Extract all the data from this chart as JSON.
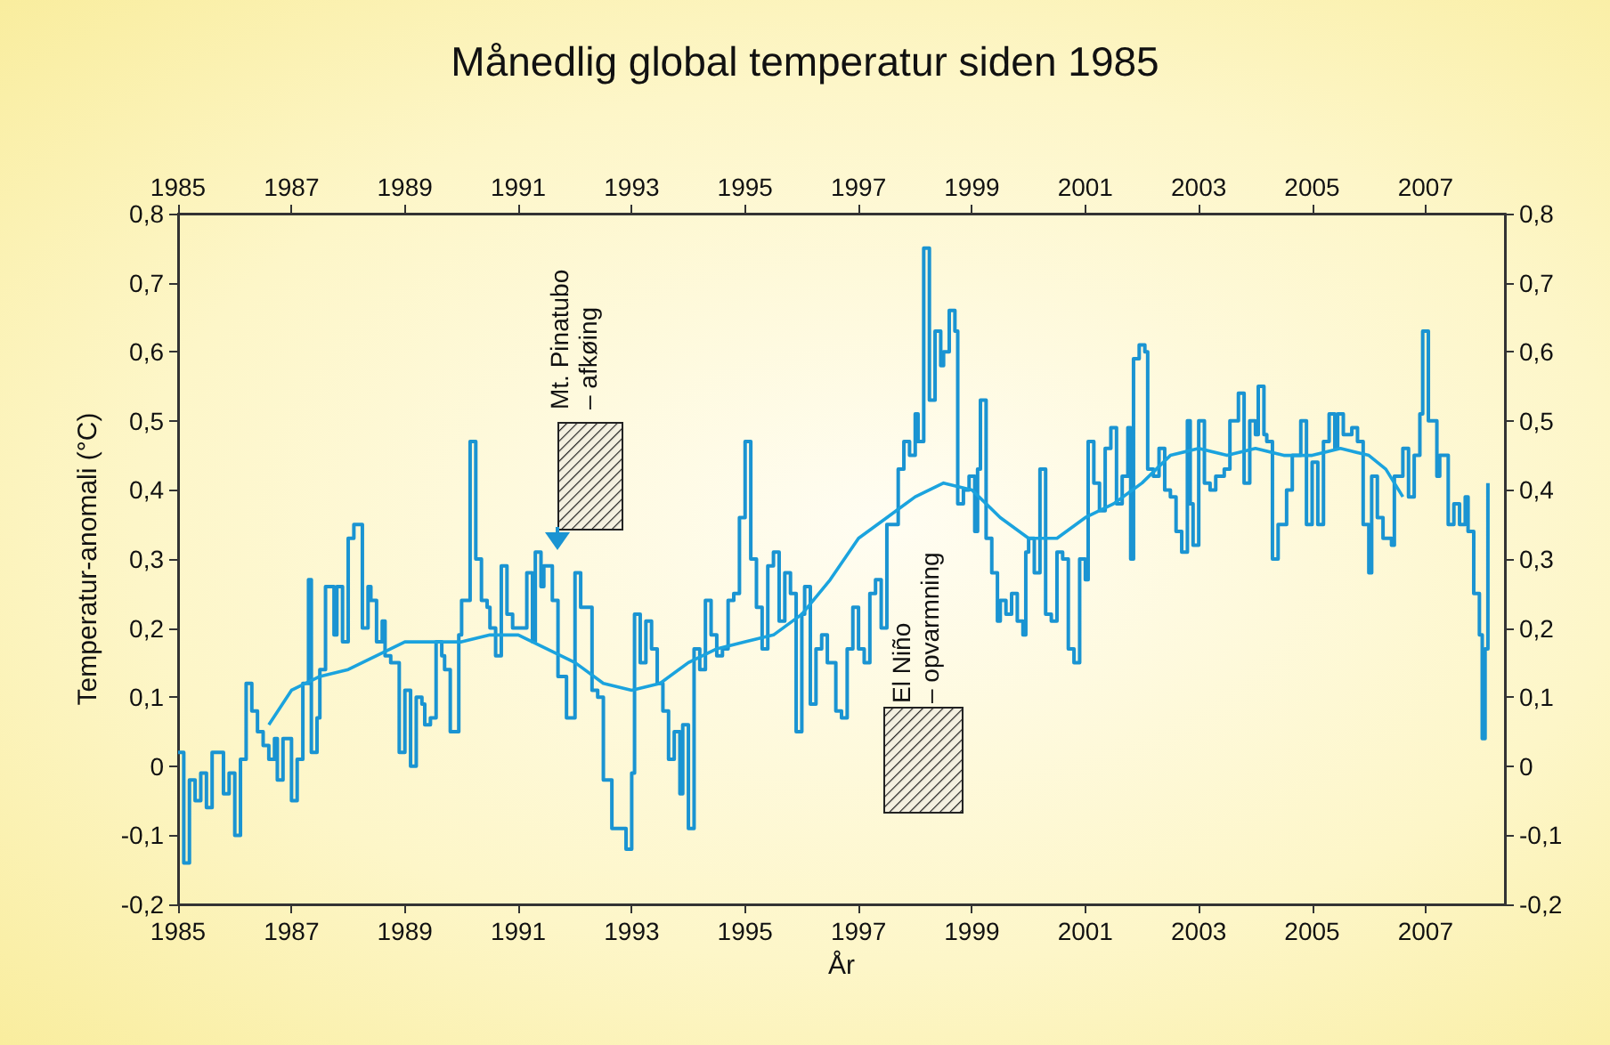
{
  "chart_data": {
    "type": "step",
    "title": "Månedlig global temperatur siden 1985",
    "xlabel": "År",
    "ylabel": "Temperatur-anomali (°C)",
    "xlim": [
      1985,
      2008.4
    ],
    "xticks": [
      1985,
      1987,
      1989,
      1991,
      1993,
      1995,
      1997,
      1999,
      2001,
      2003,
      2005,
      2007
    ],
    "x2lim": [
      1985,
      2008.4
    ],
    "x2ticks": [
      1985,
      1987,
      1989,
      1991,
      1993,
      1995,
      1997,
      1999,
      2001,
      2003,
      2005,
      2007
    ],
    "ylim": [
      -0.2,
      0.8
    ],
    "yticks": [
      {
        "value": -0.2,
        "label": "-0,2"
      },
      {
        "value": -0.1,
        "label": "-0,1"
      },
      {
        "value": 0,
        "label": "0"
      },
      {
        "value": 0.1,
        "label": "0,1"
      },
      {
        "value": 0.2,
        "label": "0,2"
      },
      {
        "value": 0.3,
        "label": "0,3"
      },
      {
        "value": 0.4,
        "label": "0,4"
      },
      {
        "value": 0.5,
        "label": "0,5"
      },
      {
        "value": 0.6,
        "label": "0,6"
      },
      {
        "value": 0.7,
        "label": "0,7"
      },
      {
        "value": 0.8,
        "label": "0,8"
      }
    ],
    "y2lim": [
      -0.2,
      0.8
    ],
    "y2ticks": [
      {
        "value": -0.2,
        "label": "-0,2"
      },
      {
        "value": -0.1,
        "label": "-0,1"
      },
      {
        "value": 0,
        "label": "0"
      },
      {
        "value": 0.1,
        "label": "0,1"
      },
      {
        "value": 0.2,
        "label": "0,2"
      },
      {
        "value": 0.3,
        "label": "0,3"
      },
      {
        "value": 0.4,
        "label": "0,4"
      },
      {
        "value": 0.5,
        "label": "0,5"
      },
      {
        "value": 0.6,
        "label": "0,6"
      },
      {
        "value": 0.7,
        "label": "0,7"
      },
      {
        "value": 0.8,
        "label": "0,8"
      }
    ],
    "grid": false,
    "marker": "none",
    "line_style": "solid",
    "annotations": [
      "Mt. Pinatubo\n– afkøing",
      "El Niño\n– opvarmning"
    ],
    "series": [
      {
        "type": "step",
        "color": "#1a94d2",
        "x": [
          1985.0,
          1985.1,
          1985.2,
          1985.3,
          1985.4,
          1985.5,
          1985.6,
          1985.8,
          1985.9,
          1986.0,
          1986.1,
          1986.2,
          1986.3,
          1986.4,
          1986.5,
          1986.6,
          1986.7,
          1986.75,
          1986.85,
          1987.0,
          1987.1,
          1987.2,
          1987.3,
          1987.35,
          1987.45,
          1987.5,
          1987.6,
          1987.75,
          1987.8,
          1987.9,
          1988.0,
          1988.1,
          1988.25,
          1988.35,
          1988.4,
          1988.5,
          1988.6,
          1988.65,
          1988.75,
          1988.9,
          1989.0,
          1989.1,
          1989.2,
          1989.3,
          1989.35,
          1989.45,
          1989.55,
          1989.65,
          1989.7,
          1989.8,
          1989.95,
          1990.0,
          1990.15,
          1990.25,
          1990.35,
          1990.45,
          1990.5,
          1990.6,
          1990.7,
          1990.8,
          1990.9,
          1991.05,
          1991.15,
          1991.25,
          1991.3,
          1991.4,
          1991.45,
          1991.6,
          1991.7,
          1991.85,
          1992.0,
          1992.1,
          1992.3,
          1992.4,
          1992.5,
          1992.65,
          1992.75,
          1992.9,
          1993.0,
          1993.05,
          1993.15,
          1993.25,
          1993.35,
          1993.45,
          1993.55,
          1993.65,
          1993.75,
          1993.85,
          1993.9,
          1994.0,
          1994.1,
          1994.2,
          1994.3,
          1994.4,
          1994.5,
          1994.6,
          1994.7,
          1994.8,
          1994.9,
          1995.0,
          1995.1,
          1995.2,
          1995.3,
          1995.4,
          1995.5,
          1995.6,
          1995.7,
          1995.8,
          1995.9,
          1996.0,
          1996.05,
          1996.15,
          1996.25,
          1996.35,
          1996.45,
          1996.6,
          1996.7,
          1996.8,
          1996.9,
          1997.0,
          1997.1,
          1997.2,
          1997.3,
          1997.4,
          1997.5,
          1997.6,
          1997.7,
          1997.8,
          1997.9,
          1998.0,
          1998.05,
          1998.15,
          1998.25,
          1998.35,
          1998.45,
          1998.5,
          1998.6,
          1998.7,
          1998.75,
          1998.85,
          1998.95,
          1999.05,
          1999.1,
          1999.15,
          1999.25,
          1999.35,
          1999.45,
          1999.5,
          1999.6,
          1999.7,
          1999.8,
          1999.9,
          1999.95,
          2000.0,
          2000.1,
          2000.2,
          2000.3,
          2000.4,
          2000.5,
          2000.6,
          2000.7,
          2000.8,
          2000.9,
          2001.0,
          2001.05,
          2001.15,
          2001.25,
          2001.35,
          2001.45,
          2001.55,
          2001.65,
          2001.75,
          2001.8,
          2001.85,
          2001.95,
          2002.05,
          2002.1,
          2002.2,
          2002.3,
          2002.4,
          2002.5,
          2002.6,
          2002.7,
          2002.8,
          2002.85,
          2002.9,
          2003.0,
          2003.1,
          2003.2,
          2003.3,
          2003.45,
          2003.55,
          2003.7,
          2003.8,
          2003.9,
          2004.0,
          2004.05,
          2004.15,
          2004.2,
          2004.3,
          2004.4,
          2004.55,
          2004.65,
          2004.8,
          2004.9,
          2005.0,
          2005.1,
          2005.2,
          2005.3,
          2005.4,
          2005.45,
          2005.55,
          2005.7,
          2005.8,
          2005.9,
          2006.0,
          2006.05,
          2006.15,
          2006.25,
          2006.4,
          2006.45,
          2006.6,
          2006.7,
          2006.8,
          2006.9,
          2006.95,
          2007.05,
          2007.2,
          2007.25,
          2007.4,
          2007.5,
          2007.6,
          2007.7,
          2007.75,
          2007.85,
          2007.95,
          2008.0,
          2008.05,
          2008.1
        ],
        "values": [
          0.02,
          -0.14,
          -0.02,
          -0.05,
          -0.01,
          -0.06,
          0.02,
          -0.04,
          -0.01,
          -0.1,
          0.01,
          0.12,
          0.08,
          0.05,
          0.03,
          0.01,
          0.04,
          -0.02,
          0.04,
          -0.05,
          0.01,
          0.12,
          0.27,
          0.02,
          0.07,
          0.14,
          0.26,
          0.19,
          0.26,
          0.18,
          0.33,
          0.35,
          0.2,
          0.26,
          0.24,
          0.18,
          0.21,
          0.16,
          0.15,
          0.02,
          0.11,
          0.0,
          0.1,
          0.09,
          0.06,
          0.07,
          0.18,
          0.16,
          0.14,
          0.05,
          0.19,
          0.24,
          0.47,
          0.3,
          0.24,
          0.23,
          0.2,
          0.16,
          0.29,
          0.22,
          0.2,
          0.2,
          0.28,
          0.18,
          0.31,
          0.26,
          0.29,
          0.24,
          0.13,
          0.07,
          0.28,
          0.23,
          0.11,
          0.1,
          -0.02,
          -0.09,
          -0.09,
          -0.12,
          -0.01,
          0.22,
          0.15,
          0.21,
          0.17,
          0.12,
          0.08,
          0.01,
          0.05,
          -0.04,
          0.06,
          -0.09,
          0.17,
          0.14,
          0.24,
          0.19,
          0.16,
          0.17,
          0.24,
          0.25,
          0.36,
          0.47,
          0.3,
          0.23,
          0.17,
          0.29,
          0.31,
          0.21,
          0.28,
          0.25,
          0.05,
          0.22,
          0.26,
          0.09,
          0.17,
          0.19,
          0.15,
          0.08,
          0.07,
          0.17,
          0.23,
          0.17,
          0.15,
          0.25,
          0.27,
          0.2,
          0.35,
          0.35,
          0.43,
          0.47,
          0.45,
          0.51,
          0.47,
          0.75,
          0.53,
          0.63,
          0.58,
          0.6,
          0.66,
          0.63,
          0.38,
          0.4,
          0.42,
          0.34,
          0.43,
          0.53,
          0.33,
          0.28,
          0.21,
          0.24,
          0.22,
          0.25,
          0.21,
          0.19,
          0.31,
          0.33,
          0.28,
          0.43,
          0.22,
          0.21,
          0.31,
          0.3,
          0.17,
          0.15,
          0.3,
          0.27,
          0.47,
          0.41,
          0.37,
          0.46,
          0.49,
          0.38,
          0.42,
          0.49,
          0.3,
          0.59,
          0.61,
          0.6,
          0.43,
          0.42,
          0.46,
          0.4,
          0.39,
          0.34,
          0.31,
          0.5,
          0.38,
          0.32,
          0.5,
          0.41,
          0.4,
          0.42,
          0.43,
          0.5,
          0.54,
          0.41,
          0.5,
          0.48,
          0.55,
          0.48,
          0.47,
          0.3,
          0.35,
          0.4,
          0.45,
          0.5,
          0.35,
          0.44,
          0.35,
          0.47,
          0.51,
          0.46,
          0.51,
          0.48,
          0.49,
          0.47,
          0.35,
          0.28,
          0.42,
          0.36,
          0.33,
          0.32,
          0.42,
          0.46,
          0.39,
          0.45,
          0.51,
          0.63,
          0.5,
          0.42,
          0.45,
          0.35,
          0.38,
          0.35,
          0.39,
          0.34,
          0.25,
          0.19,
          0.04,
          0.17,
          0.41
        ]
      },
      {
        "type": "line",
        "color": "#1ba3de",
        "x": [
          1986.6,
          1987.0,
          1987.5,
          1988.0,
          1988.5,
          1989.0,
          1989.5,
          1990.0,
          1990.5,
          1991.0,
          1991.5,
          1992.0,
          1992.5,
          1993.0,
          1993.5,
          1994.0,
          1994.5,
          1995.0,
          1995.5,
          1996.0,
          1996.5,
          1997.0,
          1997.5,
          1998.0,
          1998.5,
          1999.0,
          1999.5,
          2000.0,
          2000.5,
          2001.0,
          2001.5,
          2002.0,
          2002.5,
          2003.0,
          2003.5,
          2004.0,
          2004.5,
          2005.0,
          2005.5,
          2006.0,
          2006.3,
          2006.6
        ],
        "values": [
          0.06,
          0.11,
          0.13,
          0.14,
          0.16,
          0.18,
          0.18,
          0.18,
          0.19,
          0.19,
          0.17,
          0.15,
          0.12,
          0.11,
          0.12,
          0.15,
          0.17,
          0.18,
          0.19,
          0.22,
          0.27,
          0.33,
          0.36,
          0.39,
          0.41,
          0.4,
          0.36,
          0.33,
          0.33,
          0.36,
          0.38,
          0.41,
          0.45,
          0.46,
          0.45,
          0.46,
          0.45,
          0.45,
          0.46,
          0.45,
          0.43,
          0.39
        ]
      }
    ]
  }
}
